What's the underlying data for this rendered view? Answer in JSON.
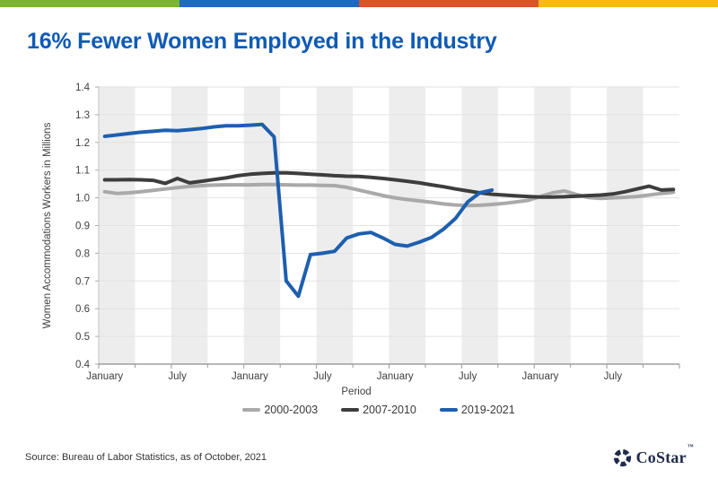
{
  "top_bar": {
    "colors": [
      "#7BB62E",
      "#1E6BC4",
      "#DD5226",
      "#F9B915"
    ]
  },
  "title": "16% Fewer Women Employed in the Industry",
  "title_color": "#0F5BB5",
  "chart_data": {
    "type": "line",
    "title": "",
    "xlabel": "Period",
    "ylabel": "Women Accommodations Workers in Millions",
    "ylim": [
      0.4,
      1.4
    ],
    "y_tick_step": 0.1,
    "x_tick_labels": [
      "January",
      "July",
      "January",
      "July",
      "January",
      "July",
      "January",
      "July"
    ],
    "months_total": 48,
    "label_every_months": 6,
    "band_every_months": 3,
    "grid": true,
    "band_color": "#EDEDED",
    "legend_position": "bottom",
    "series": [
      {
        "name": "2000-2003",
        "color": "#A9A9A9",
        "values": [
          1.022,
          1.016,
          1.018,
          1.022,
          1.027,
          1.032,
          1.037,
          1.041,
          1.044,
          1.046,
          1.047,
          1.047,
          1.047,
          1.048,
          1.048,
          1.047,
          1.046,
          1.046,
          1.045,
          1.044,
          1.038,
          1.028,
          1.018,
          1.008,
          1.0,
          0.994,
          0.989,
          0.984,
          0.978,
          0.974,
          0.972,
          0.973,
          0.976,
          0.98,
          0.985,
          0.991,
          1.005,
          1.018,
          1.025,
          1.012,
          1.001,
          0.998,
          1.0,
          1.002,
          1.005,
          1.01,
          1.016,
          1.02
        ]
      },
      {
        "name": "2007-2010",
        "color": "#3D3D3D",
        "values": [
          1.065,
          1.065,
          1.066,
          1.065,
          1.063,
          1.052,
          1.07,
          1.054,
          1.06,
          1.066,
          1.072,
          1.08,
          1.085,
          1.088,
          1.09,
          1.09,
          1.088,
          1.085,
          1.083,
          1.08,
          1.078,
          1.077,
          1.074,
          1.07,
          1.065,
          1.06,
          1.054,
          1.047,
          1.04,
          1.032,
          1.025,
          1.018,
          1.013,
          1.01,
          1.007,
          1.005,
          1.003,
          1.003,
          1.004,
          1.006,
          1.008,
          1.01,
          1.014,
          1.022,
          1.032,
          1.042,
          1.028,
          1.03
        ]
      },
      {
        "name": "2019-2021",
        "color": "#1D5FAF",
        "values": [
          1.222,
          1.227,
          1.232,
          1.237,
          1.24,
          1.244,
          1.242,
          1.246,
          1.25,
          1.256,
          1.26,
          1.26,
          1.262,
          1.265,
          1.22,
          0.7,
          0.645,
          0.795,
          0.8,
          0.807,
          0.855,
          0.87,
          0.875,
          0.855,
          0.832,
          0.826,
          0.84,
          0.857,
          0.887,
          0.926,
          0.985,
          1.018,
          1.028
        ]
      }
    ]
  },
  "footer": {
    "source": "Source: Bureau of Labor Statistics, as of October, 2021",
    "brand": "CoStar",
    "brand_tm": "™",
    "brand_color": "#202B4B"
  }
}
